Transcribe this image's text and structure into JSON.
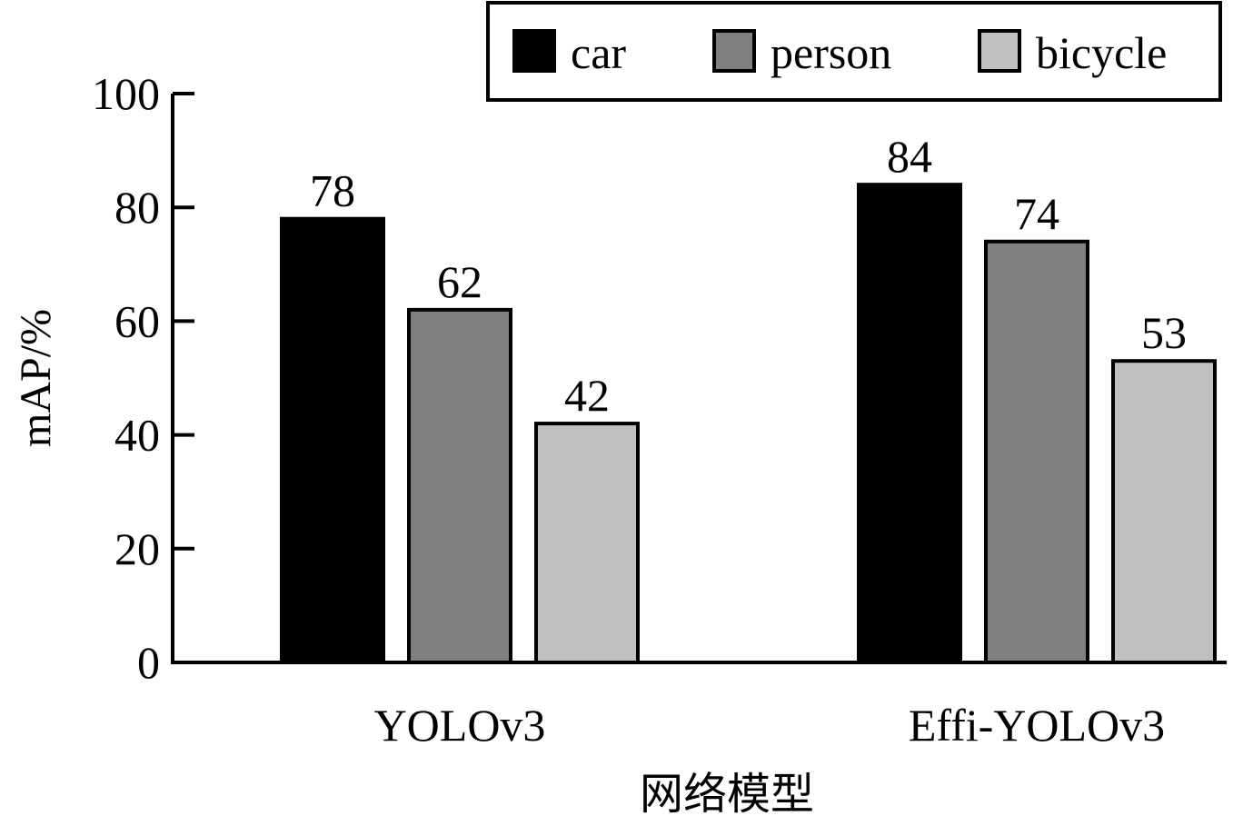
{
  "chart_data": {
    "type": "bar",
    "title": "",
    "xlabel": "网络模型",
    "ylabel": "mAP/%",
    "ylim": [
      0,
      100
    ],
    "yticks": [
      0,
      20,
      40,
      60,
      80,
      100
    ],
    "categories": [
      "YOLOv3",
      "Effi-YOLOv3"
    ],
    "series": [
      {
        "name": "car",
        "values": [
          78,
          84
        ],
        "color": "#000000"
      },
      {
        "name": "person",
        "values": [
          62,
          74
        ],
        "color": "#808080"
      },
      {
        "name": "bicycle",
        "values": [
          42,
          53
        ],
        "color": "#c0c0c0"
      }
    ],
    "legend_position": "top-right",
    "grid": false
  }
}
